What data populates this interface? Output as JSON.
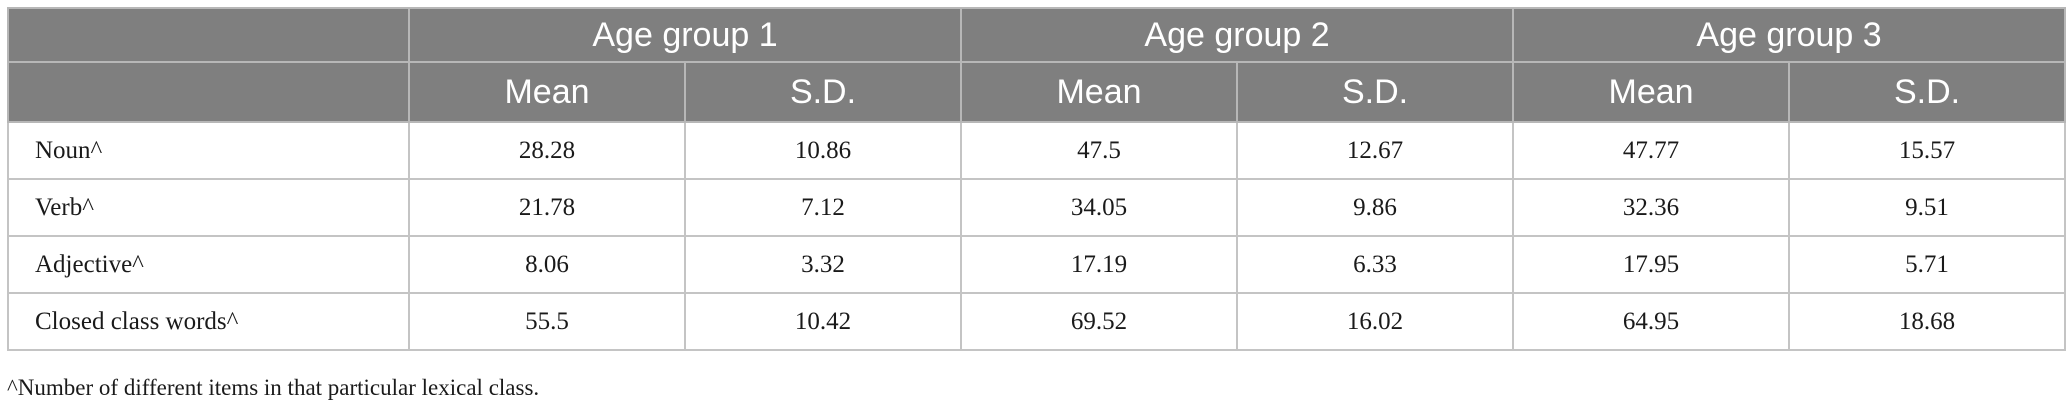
{
  "table": {
    "group_headers": [
      "Age group 1",
      "Age group 2",
      "Age group 3"
    ],
    "stat_headers": [
      "Mean",
      "S.D.",
      "Mean",
      "S.D.",
      "Mean",
      "S.D."
    ],
    "rows": [
      {
        "label": "Noun^",
        "values": [
          "28.28",
          "10.86",
          "47.5",
          "12.67",
          "47.77",
          "15.57"
        ]
      },
      {
        "label": "Verb^",
        "values": [
          "21.78",
          "7.12",
          "34.05",
          "9.86",
          "32.36",
          "9.51"
        ]
      },
      {
        "label": "Adjective^",
        "values": [
          "8.06",
          "3.32",
          "17.19",
          "6.33",
          "17.95",
          "5.71"
        ]
      },
      {
        "label": "Closed class words^",
        "values": [
          "55.5",
          "10.42",
          "69.52",
          "16.02",
          "64.95",
          "18.68"
        ]
      }
    ]
  },
  "footnote": "^Number of different items in that particular lexical class."
}
